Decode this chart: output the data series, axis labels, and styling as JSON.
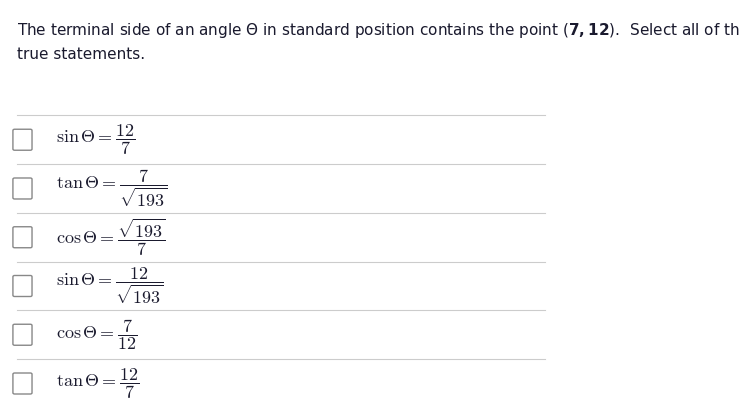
{
  "title_text": "The terminal side of an angle $\\Theta$ in standard position contains the point $(\\mathbf{7, 12})$.  Select all of the\ntrue statements.",
  "background_color": "#ffffff",
  "text_color": "#1a1a2e",
  "line_color": "#cccccc",
  "checkbox_color": "#888888",
  "statements": [
    {
      "label": "$\\sin\\Theta = \\dfrac{12}{7}$"
    },
    {
      "label": "$\\tan\\Theta = \\dfrac{7}{\\sqrt{193}}$"
    },
    {
      "label": "$\\cos\\Theta = \\dfrac{\\sqrt{193}}{7}$"
    },
    {
      "label": "$\\sin\\Theta = \\dfrac{12}{\\sqrt{193}}$"
    },
    {
      "label": "$\\cos\\Theta = \\dfrac{7}{12}$"
    },
    {
      "label": "$\\tan\\Theta = \\dfrac{12}{7}$"
    }
  ],
  "figsize": [
    7.39,
    4.12
  ],
  "dpi": 100
}
